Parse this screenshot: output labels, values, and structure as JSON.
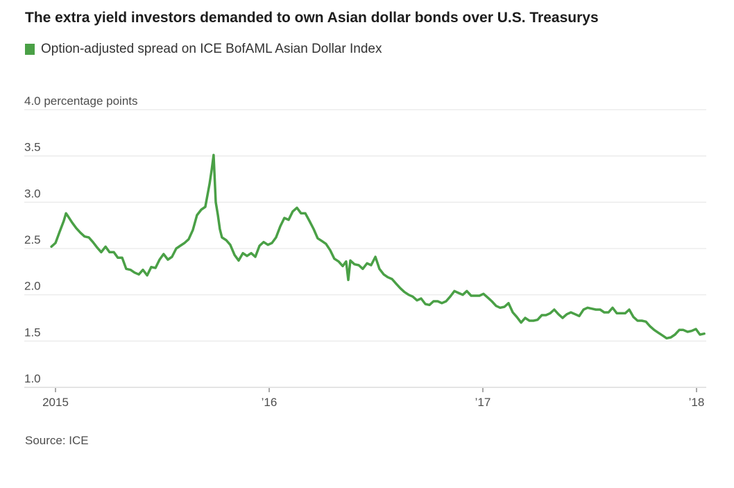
{
  "header": {
    "title": "The extra yield investors demanded to own Asian dollar bonds over U.S. Treasurys"
  },
  "legend": {
    "label": "Option-adjusted spread on ICE BofAML Asian Dollar Index",
    "swatch_color": "#4aa046"
  },
  "source": {
    "text": "Source: ICE"
  },
  "chart_data": {
    "type": "line",
    "title": "The extra yield investors demanded to own Asian dollar bonds over U.S. Treasurys",
    "xlabel": "",
    "ylabel": "percentage points",
    "x_domain": [
      2014.98,
      2018.04
    ],
    "y_domain": [
      1.0,
      4.0
    ],
    "grid": true,
    "legend_position": "top-left",
    "y_ticks": [
      {
        "value": 4.0,
        "label": "4.0 percentage points"
      },
      {
        "value": 3.5,
        "label": "3.5"
      },
      {
        "value": 3.0,
        "label": "3.0"
      },
      {
        "value": 2.5,
        "label": "2.5"
      },
      {
        "value": 2.0,
        "label": "2.0"
      },
      {
        "value": 1.5,
        "label": "1.5"
      },
      {
        "value": 1.0,
        "label": "1.0"
      }
    ],
    "x_ticks": [
      {
        "value": 2015,
        "label": "2015"
      },
      {
        "value": 2016,
        "label": "’16"
      },
      {
        "value": 2017,
        "label": "’17"
      },
      {
        "value": 2018,
        "label": "’18"
      }
    ],
    "series": [
      {
        "name": "Option-adjusted spread on ICE BofAML Asian Dollar Index",
        "color": "#4aa046",
        "points": [
          [
            2014.981,
            2.52
          ],
          [
            2015.0,
            2.56
          ],
          [
            2015.019,
            2.68
          ],
          [
            2015.039,
            2.8
          ],
          [
            2015.049,
            2.88
          ],
          [
            2015.058,
            2.85
          ],
          [
            2015.078,
            2.78
          ],
          [
            2015.097,
            2.72
          ],
          [
            2015.117,
            2.67
          ],
          [
            2015.136,
            2.63
          ],
          [
            2015.156,
            2.62
          ],
          [
            2015.175,
            2.57
          ],
          [
            2015.195,
            2.51
          ],
          [
            2015.214,
            2.46
          ],
          [
            2015.234,
            2.52
          ],
          [
            2015.253,
            2.46
          ],
          [
            2015.273,
            2.46
          ],
          [
            2015.292,
            2.4
          ],
          [
            2015.312,
            2.4
          ],
          [
            2015.331,
            2.28
          ],
          [
            2015.351,
            2.27
          ],
          [
            2015.37,
            2.24
          ],
          [
            2015.39,
            2.22
          ],
          [
            2015.409,
            2.27
          ],
          [
            2015.429,
            2.21
          ],
          [
            2015.448,
            2.3
          ],
          [
            2015.468,
            2.29
          ],
          [
            2015.487,
            2.38
          ],
          [
            2015.506,
            2.44
          ],
          [
            2015.526,
            2.38
          ],
          [
            2015.545,
            2.41
          ],
          [
            2015.565,
            2.5
          ],
          [
            2015.584,
            2.53
          ],
          [
            2015.604,
            2.56
          ],
          [
            2015.623,
            2.6
          ],
          [
            2015.643,
            2.7
          ],
          [
            2015.662,
            2.86
          ],
          [
            2015.682,
            2.92
          ],
          [
            2015.701,
            2.95
          ],
          [
            2015.721,
            3.2
          ],
          [
            2015.731,
            3.35
          ],
          [
            2015.74,
            3.51
          ],
          [
            2015.75,
            3.0
          ],
          [
            2015.76,
            2.86
          ],
          [
            2015.769,
            2.71
          ],
          [
            2015.779,
            2.62
          ],
          [
            2015.799,
            2.59
          ],
          [
            2015.818,
            2.54
          ],
          [
            2015.838,
            2.43
          ],
          [
            2015.857,
            2.37
          ],
          [
            2015.877,
            2.45
          ],
          [
            2015.896,
            2.42
          ],
          [
            2015.916,
            2.45
          ],
          [
            2015.935,
            2.41
          ],
          [
            2015.955,
            2.53
          ],
          [
            2015.974,
            2.57
          ],
          [
            2015.994,
            2.54
          ],
          [
            2016.013,
            2.56
          ],
          [
            2016.032,
            2.62
          ],
          [
            2016.052,
            2.74
          ],
          [
            2016.071,
            2.83
          ],
          [
            2016.091,
            2.81
          ],
          [
            2016.11,
            2.9
          ],
          [
            2016.13,
            2.94
          ],
          [
            2016.149,
            2.88
          ],
          [
            2016.169,
            2.88
          ],
          [
            2016.188,
            2.8
          ],
          [
            2016.208,
            2.71
          ],
          [
            2016.227,
            2.61
          ],
          [
            2016.247,
            2.58
          ],
          [
            2016.266,
            2.55
          ],
          [
            2016.286,
            2.48
          ],
          [
            2016.305,
            2.39
          ],
          [
            2016.325,
            2.36
          ],
          [
            2016.344,
            2.31
          ],
          [
            2016.36,
            2.36
          ],
          [
            2016.37,
            2.16
          ],
          [
            2016.38,
            2.37
          ],
          [
            2016.399,
            2.33
          ],
          [
            2016.419,
            2.32
          ],
          [
            2016.438,
            2.28
          ],
          [
            2016.458,
            2.34
          ],
          [
            2016.477,
            2.32
          ],
          [
            2016.497,
            2.41
          ],
          [
            2016.516,
            2.28
          ],
          [
            2016.536,
            2.22
          ],
          [
            2016.555,
            2.19
          ],
          [
            2016.575,
            2.17
          ],
          [
            2016.594,
            2.12
          ],
          [
            2016.614,
            2.07
          ],
          [
            2016.633,
            2.03
          ],
          [
            2016.653,
            2.0
          ],
          [
            2016.672,
            1.98
          ],
          [
            2016.692,
            1.94
          ],
          [
            2016.711,
            1.96
          ],
          [
            2016.731,
            1.9
          ],
          [
            2016.75,
            1.89
          ],
          [
            2016.769,
            1.93
          ],
          [
            2016.789,
            1.93
          ],
          [
            2016.808,
            1.91
          ],
          [
            2016.828,
            1.93
          ],
          [
            2016.847,
            1.98
          ],
          [
            2016.867,
            2.04
          ],
          [
            2016.886,
            2.02
          ],
          [
            2016.906,
            2.0
          ],
          [
            2016.925,
            2.04
          ],
          [
            2016.945,
            1.99
          ],
          [
            2016.964,
            1.99
          ],
          [
            2016.984,
            1.99
          ],
          [
            2017.003,
            2.01
          ],
          [
            2017.023,
            1.97
          ],
          [
            2017.042,
            1.93
          ],
          [
            2017.062,
            1.88
          ],
          [
            2017.081,
            1.86
          ],
          [
            2017.101,
            1.87
          ],
          [
            2017.12,
            1.91
          ],
          [
            2017.14,
            1.81
          ],
          [
            2017.159,
            1.76
          ],
          [
            2017.179,
            1.7
          ],
          [
            2017.198,
            1.75
          ],
          [
            2017.218,
            1.72
          ],
          [
            2017.237,
            1.72
          ],
          [
            2017.256,
            1.73
          ],
          [
            2017.276,
            1.78
          ],
          [
            2017.295,
            1.78
          ],
          [
            2017.315,
            1.8
          ],
          [
            2017.334,
            1.84
          ],
          [
            2017.354,
            1.79
          ],
          [
            2017.373,
            1.75
          ],
          [
            2017.393,
            1.79
          ],
          [
            2017.412,
            1.81
          ],
          [
            2017.432,
            1.79
          ],
          [
            2017.451,
            1.77
          ],
          [
            2017.471,
            1.84
          ],
          [
            2017.49,
            1.86
          ],
          [
            2017.51,
            1.85
          ],
          [
            2017.529,
            1.84
          ],
          [
            2017.549,
            1.84
          ],
          [
            2017.568,
            1.81
          ],
          [
            2017.588,
            1.81
          ],
          [
            2017.607,
            1.86
          ],
          [
            2017.627,
            1.8
          ],
          [
            2017.646,
            1.8
          ],
          [
            2017.666,
            1.8
          ],
          [
            2017.685,
            1.84
          ],
          [
            2017.705,
            1.76
          ],
          [
            2017.724,
            1.72
          ],
          [
            2017.744,
            1.72
          ],
          [
            2017.763,
            1.71
          ],
          [
            2017.782,
            1.66
          ],
          [
            2017.802,
            1.62
          ],
          [
            2017.821,
            1.59
          ],
          [
            2017.841,
            1.56
          ],
          [
            2017.86,
            1.53
          ],
          [
            2017.88,
            1.54
          ],
          [
            2017.899,
            1.57
          ],
          [
            2017.919,
            1.62
          ],
          [
            2017.938,
            1.62
          ],
          [
            2017.958,
            1.6
          ],
          [
            2017.977,
            1.61
          ],
          [
            2017.997,
            1.63
          ],
          [
            2018.016,
            1.57
          ],
          [
            2018.036,
            1.58
          ]
        ]
      }
    ]
  }
}
